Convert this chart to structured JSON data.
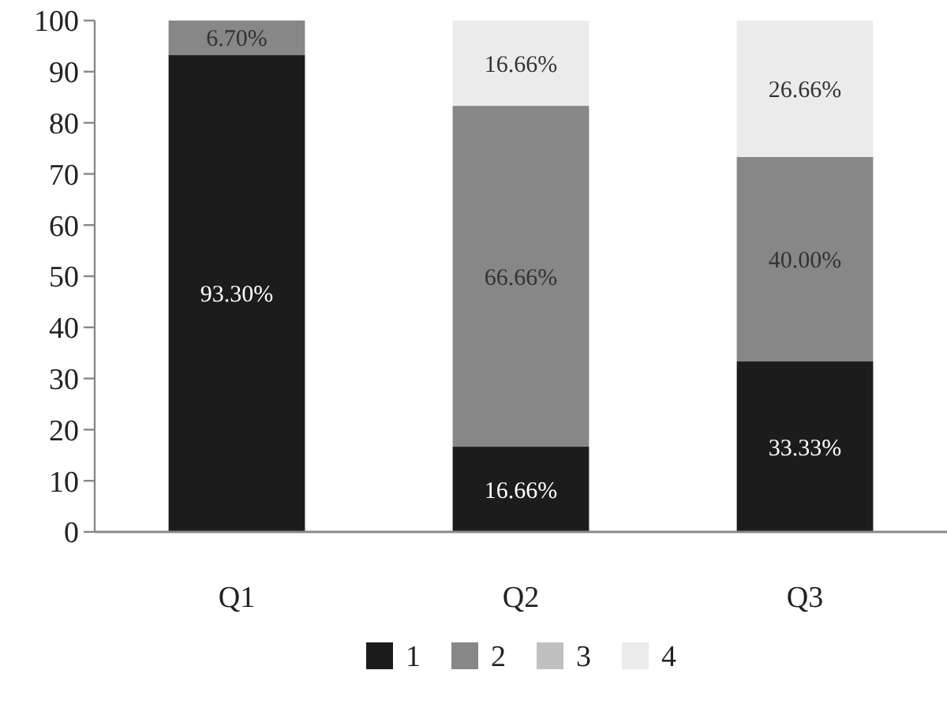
{
  "chart_data": {
    "type": "bar",
    "stacked": true,
    "categories": [
      "Q1",
      "Q2",
      "Q3"
    ],
    "series": [
      {
        "name": "1",
        "color": "#1c1c1c",
        "values": [
          93.3,
          16.66,
          33.33
        ],
        "value_labels": [
          "93.30%",
          "16.66%",
          "33.33%"
        ]
      },
      {
        "name": "2",
        "color": "#878787",
        "values": [
          6.7,
          66.66,
          40.0
        ],
        "value_labels": [
          "6.70%",
          "66.66%",
          "40.00%"
        ]
      },
      {
        "name": "3",
        "color": "#c0c0c0",
        "values": [
          null,
          null,
          null
        ],
        "value_labels": [
          null,
          null,
          null
        ]
      },
      {
        "name": "4",
        "color": "#ebebeb",
        "values": [
          null,
          16.66,
          26.66
        ],
        "value_labels": [
          null,
          "16.66%",
          "26.66%"
        ]
      }
    ],
    "ylim": [
      0,
      100
    ],
    "yticks": [
      0,
      10,
      20,
      30,
      40,
      50,
      60,
      70,
      80,
      90,
      100
    ],
    "legend": "bottom"
  }
}
